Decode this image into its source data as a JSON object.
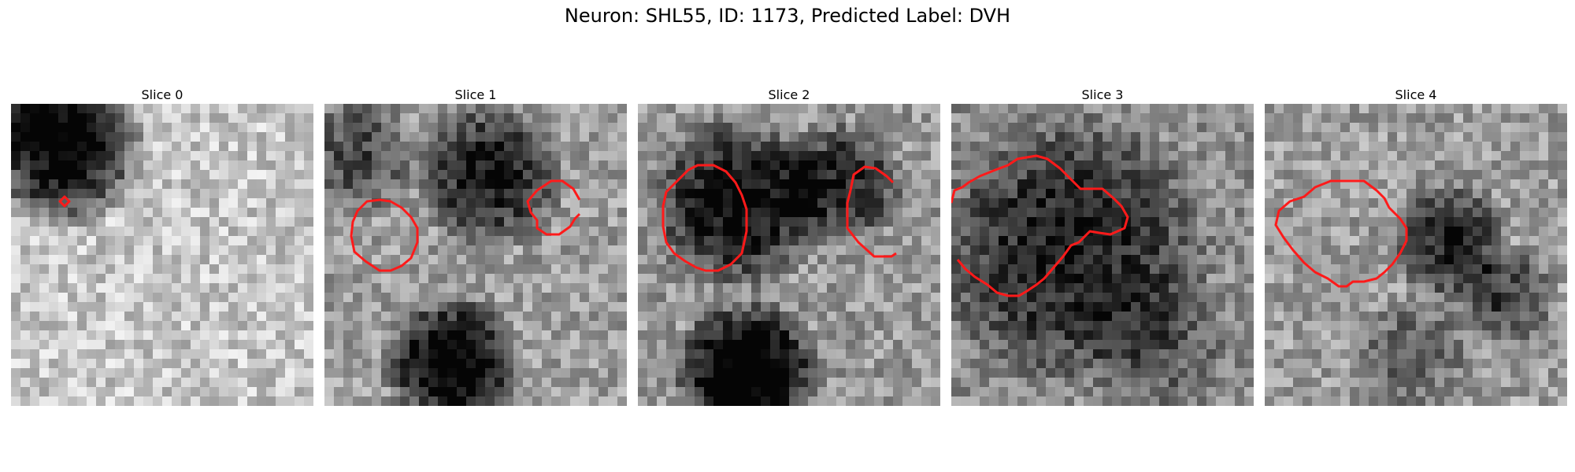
{
  "figure": {
    "title": "Neuron: SHL55, ID: 1173, Predicted Label: DVH"
  },
  "colors": {
    "contour": "#ff1a1a",
    "background": "#ffffff"
  },
  "panels": [
    {
      "label": "Slice 0"
    },
    {
      "label": "Slice 1"
    },
    {
      "label": "Slice 2"
    },
    {
      "label": "Slice 3"
    },
    {
      "label": "Slice 4"
    }
  ]
}
